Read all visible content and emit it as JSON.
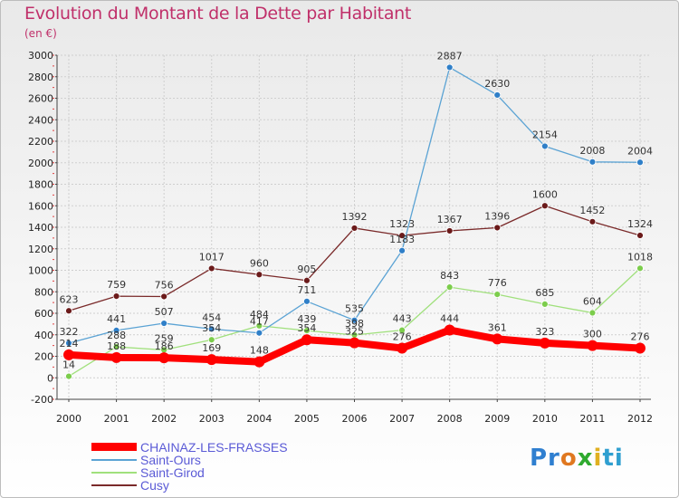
{
  "chart_data": {
    "type": "line",
    "title": "Evolution du Montant de la Dette par Habitant",
    "subtitle": "(en €)",
    "xlabel": "",
    "ylabel": "",
    "ylim": [
      -200,
      3000
    ],
    "ytick_step": 200,
    "x": [
      "2000",
      "2001",
      "2002",
      "2003",
      "2004",
      "2005",
      "2006",
      "2007",
      "2008",
      "2009",
      "2010",
      "2011",
      "2012"
    ],
    "series": [
      {
        "name": "CHAINAZ-LES-FRASSES",
        "color": "#ff0000",
        "marker": "#ff0000",
        "values": [
          214,
          188,
          186,
          169,
          148,
          354,
          325,
          276,
          444,
          361,
          323,
          300,
          276
        ]
      },
      {
        "name": "Saint-Ours",
        "color": "#5ba3d4",
        "marker": "#2f7fc8",
        "values": [
          322,
          441,
          507,
          454,
          417,
          711,
          535,
          1183,
          2887,
          2630,
          2154,
          2008,
          2004
        ]
      },
      {
        "name": "Saint-Girod",
        "color": "#a0e07c",
        "marker": "#7ccd4c",
        "values": [
          14,
          288,
          259,
          354,
          484,
          439,
          398,
          443,
          843,
          776,
          685,
          604,
          1018
        ]
      },
      {
        "name": "Cusy",
        "color": "#7a2a2a",
        "marker": "#6b1a1a",
        "values": [
          623,
          759,
          756,
          1017,
          960,
          905,
          1392,
          1323,
          1367,
          1396,
          1600,
          1452,
          1324
        ]
      }
    ],
    "labels_shown": {
      "CHAINAZ-LES-FRASSES": [
        "214",
        "188",
        "186",
        "169",
        "148",
        "354",
        "325",
        "276",
        "444",
        "361",
        "323",
        "300",
        "276"
      ],
      "Saint-Ours": [
        "322",
        "441",
        "507",
        "454",
        "417",
        "711",
        "535",
        "1183",
        "2887",
        "2630",
        "2154",
        "2008",
        "2004"
      ],
      "Saint-Girod": [
        "14",
        "288",
        "259",
        "354",
        "484",
        "439",
        "398",
        "443",
        "843",
        "776",
        "685",
        "604",
        "1018"
      ],
      "Cusy": [
        "623",
        "759",
        "756",
        "1017",
        "960",
        "905",
        "1392",
        "1323",
        "1367",
        "1396",
        "1600",
        "1452",
        "1324"
      ]
    },
    "legend_position": "bottom-left",
    "grid": true
  },
  "logo": {
    "p1": "Pr",
    "p2": "o",
    "p3": "x",
    "p4": "i",
    "p5": "ti"
  }
}
